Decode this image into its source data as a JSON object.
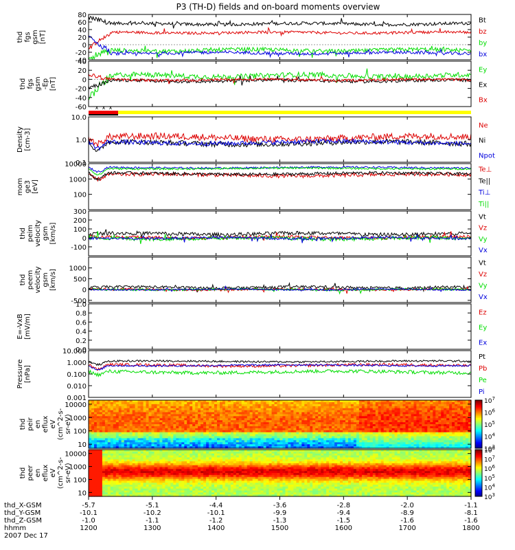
{
  "figure": {
    "title": "P3 (TH-D) fields and on-board moments overview"
  },
  "colors": {
    "black": "#000000",
    "red": "#dd0000",
    "green": "#00dd00",
    "blue": "#0000dd",
    "yellow": "#ffff00",
    "bar_red": "#ee0000"
  },
  "chart_data": [
    {
      "type": "line",
      "id": "fgs",
      "ylabel": [
        "thd",
        "fgs",
        "gsm",
        "[nT]"
      ],
      "ylim": [
        -40,
        80
      ],
      "yticks": [
        -40,
        -20,
        0,
        20,
        40,
        60,
        80
      ],
      "series": [
        {
          "name": "Bt",
          "color": "black",
          "base": 55,
          "noise": 6,
          "start": 72
        },
        {
          "name": "bz",
          "color": "red",
          "base": 32,
          "noise": 5,
          "start": -10
        },
        {
          "name": "by",
          "color": "green",
          "base": -15,
          "noise": 8,
          "start": -35
        },
        {
          "name": "bx",
          "color": "blue",
          "base": -22,
          "noise": 6,
          "start": 20
        }
      ]
    },
    {
      "type": "line",
      "id": "fgs-ep",
      "ylabel": [
        "thd",
        "fgs",
        "gsm",
        "-Ep",
        "[nT]"
      ],
      "ylim": [
        -60,
        40
      ],
      "yticks": [
        -60,
        -40,
        -20,
        0,
        20,
        40
      ],
      "series": [
        {
          "name": "Ey",
          "color": "green",
          "base": 8,
          "noise": 8,
          "start": -40
        },
        {
          "name": "Ex",
          "color": "black",
          "base": -3,
          "noise": 5,
          "start": -20
        },
        {
          "name": "Bx",
          "color": "red",
          "base": -1,
          "noise": 4,
          "start": 10
        }
      ]
    },
    {
      "type": "mode_bar",
      "id": "mode",
      "marks": [
        "x",
        "x",
        "x"
      ]
    },
    {
      "type": "line",
      "id": "density",
      "scale": "log",
      "ylabel": [
        "Density",
        "[cm-3]"
      ],
      "ylim": [
        0.1,
        10
      ],
      "yticks": [
        "0.1",
        "1.0",
        "10.0"
      ],
      "series": [
        {
          "name": "Ne",
          "color": "red",
          "base": 1.2,
          "noise": 0.15
        },
        {
          "name": "Ni",
          "color": "black",
          "base": 0.7,
          "noise": 0.12
        },
        {
          "name": "Npot",
          "color": "blue",
          "base": 0.75,
          "noise": 0.1
        }
      ]
    },
    {
      "type": "line",
      "id": "temp",
      "scale": "log",
      "ylabel": [
        "mom",
        "ge3",
        "[eV]"
      ],
      "ylim": [
        10,
        10000
      ],
      "yticks": [
        "100",
        "1000",
        "10000"
      ],
      "series": [
        {
          "name": "Te⊥",
          "color": "red",
          "base": 1800,
          "noise": 0.12
        },
        {
          "name": "Te||",
          "color": "black",
          "base": 2200,
          "noise": 0.1
        },
        {
          "name": "Ti⊥",
          "color": "blue",
          "base": 5500,
          "noise": 0.06
        },
        {
          "name": "Ti||",
          "color": "green",
          "base": 4800,
          "noise": 0.06
        }
      ]
    },
    {
      "type": "line",
      "id": "peim-vel",
      "ylabel": [
        "thd",
        "peim",
        "velocity",
        "gsm",
        "[km/s]"
      ],
      "ylim": [
        -200,
        300
      ],
      "yticks": [
        -100,
        0,
        100,
        200,
        300
      ],
      "series": [
        {
          "name": "Vt",
          "color": "black",
          "base": 45,
          "noise": 30
        },
        {
          "name": "Vz",
          "color": "red",
          "base": 5,
          "noise": 25
        },
        {
          "name": "Vy",
          "color": "green",
          "base": -5,
          "noise": 30
        },
        {
          "name": "Vx",
          "color": "blue",
          "base": -3,
          "noise": 20
        }
      ]
    },
    {
      "type": "line",
      "id": "peem-vel",
      "ylabel": [
        "thd",
        "peem",
        "velocity",
        "gsm",
        "[km/s]"
      ],
      "ylim": [
        -600,
        1500
      ],
      "yticks": [
        -500,
        0,
        500,
        1000
      ],
      "series": [
        {
          "name": "Vt",
          "color": "black",
          "base": 100,
          "noise": 90
        },
        {
          "name": "Vz",
          "color": "red",
          "base": 0,
          "noise": 70
        },
        {
          "name": "Vy",
          "color": "green",
          "base": 0,
          "noise": 70
        },
        {
          "name": "Vx",
          "color": "blue",
          "base": 0,
          "noise": 50
        }
      ]
    },
    {
      "type": "line",
      "id": "efield",
      "ylabel": [
        "E=-VxB",
        "[mV/m]"
      ],
      "ylim": [
        0,
        1
      ],
      "yticks": [
        "0.0",
        "0.2",
        "0.4",
        "0.6",
        "0.8",
        "1.0"
      ],
      "series": [
        {
          "name": "Ez",
          "color": "red"
        },
        {
          "name": "Ey",
          "color": "green"
        },
        {
          "name": "Ex",
          "color": "blue"
        }
      ]
    },
    {
      "type": "line",
      "id": "pressure",
      "scale": "log",
      "ylabel": [
        "Pressure",
        "[nPa]"
      ],
      "ylim": [
        0.001,
        10
      ],
      "yticks": [
        "0.001",
        "0.010",
        "0.100",
        "1.000",
        "10.000"
      ],
      "series": [
        {
          "name": "Pt",
          "color": "black",
          "base": 1.2,
          "noise": 0.08
        },
        {
          "name": "Pb",
          "color": "red",
          "base": 0.55,
          "noise": 0.12
        },
        {
          "name": "Pe",
          "color": "green",
          "base": 0.15,
          "noise": 0.15
        },
        {
          "name": "Pi",
          "color": "blue",
          "base": 0.55,
          "noise": 0.08
        }
      ]
    },
    {
      "type": "heatmap",
      "id": "peir",
      "ylabel": [
        "thd",
        "peir",
        "en",
        "eflux",
        "eV",
        "(cm^2-s-",
        "sr-eV)"
      ],
      "yticks": [
        "10",
        "100",
        "1000",
        "10000"
      ],
      "colorbar": [
        "10^3",
        "10^4",
        "10^5",
        "10^6",
        "10^7"
      ]
    },
    {
      "type": "heatmap",
      "id": "peer",
      "ylabel": [
        "thd",
        "peer",
        "en",
        "eflux",
        "eV",
        "(cm^2-s-",
        "sr-eV)"
      ],
      "yticks": [
        "10",
        "100",
        "1000",
        "10000"
      ],
      "colorbar": [
        "10^3",
        "10^4",
        "10^5",
        "10^6",
        "10^7",
        "10^8"
      ]
    }
  ],
  "x_axis": {
    "ticks": [
      "1200",
      "1300",
      "1400",
      "1500",
      "1600",
      "1700",
      "1800"
    ],
    "rows": [
      {
        "label": "thd_X-GSM",
        "values": [
          "-5.7",
          "-5.1",
          "-4.4",
          "-3.6",
          "-2.8",
          "-2.0",
          "-1.1"
        ]
      },
      {
        "label": "thd_Y-GSM",
        "values": [
          "-10.1",
          "-10.2",
          "-10.1",
          "-9.9",
          "-9.4",
          "-8.9",
          "-8.1"
        ]
      },
      {
        "label": "thd_Z-GSM",
        "values": [
          "-1.0",
          "-1.1",
          "-1.2",
          "-1.3",
          "-1.5",
          "-1.6",
          "-1.6"
        ]
      },
      {
        "label": "hhmm",
        "values": [
          "1200",
          "1300",
          "1400",
          "1500",
          "1600",
          "1700",
          "1800"
        ]
      }
    ],
    "date": "2007 Dec 17"
  }
}
